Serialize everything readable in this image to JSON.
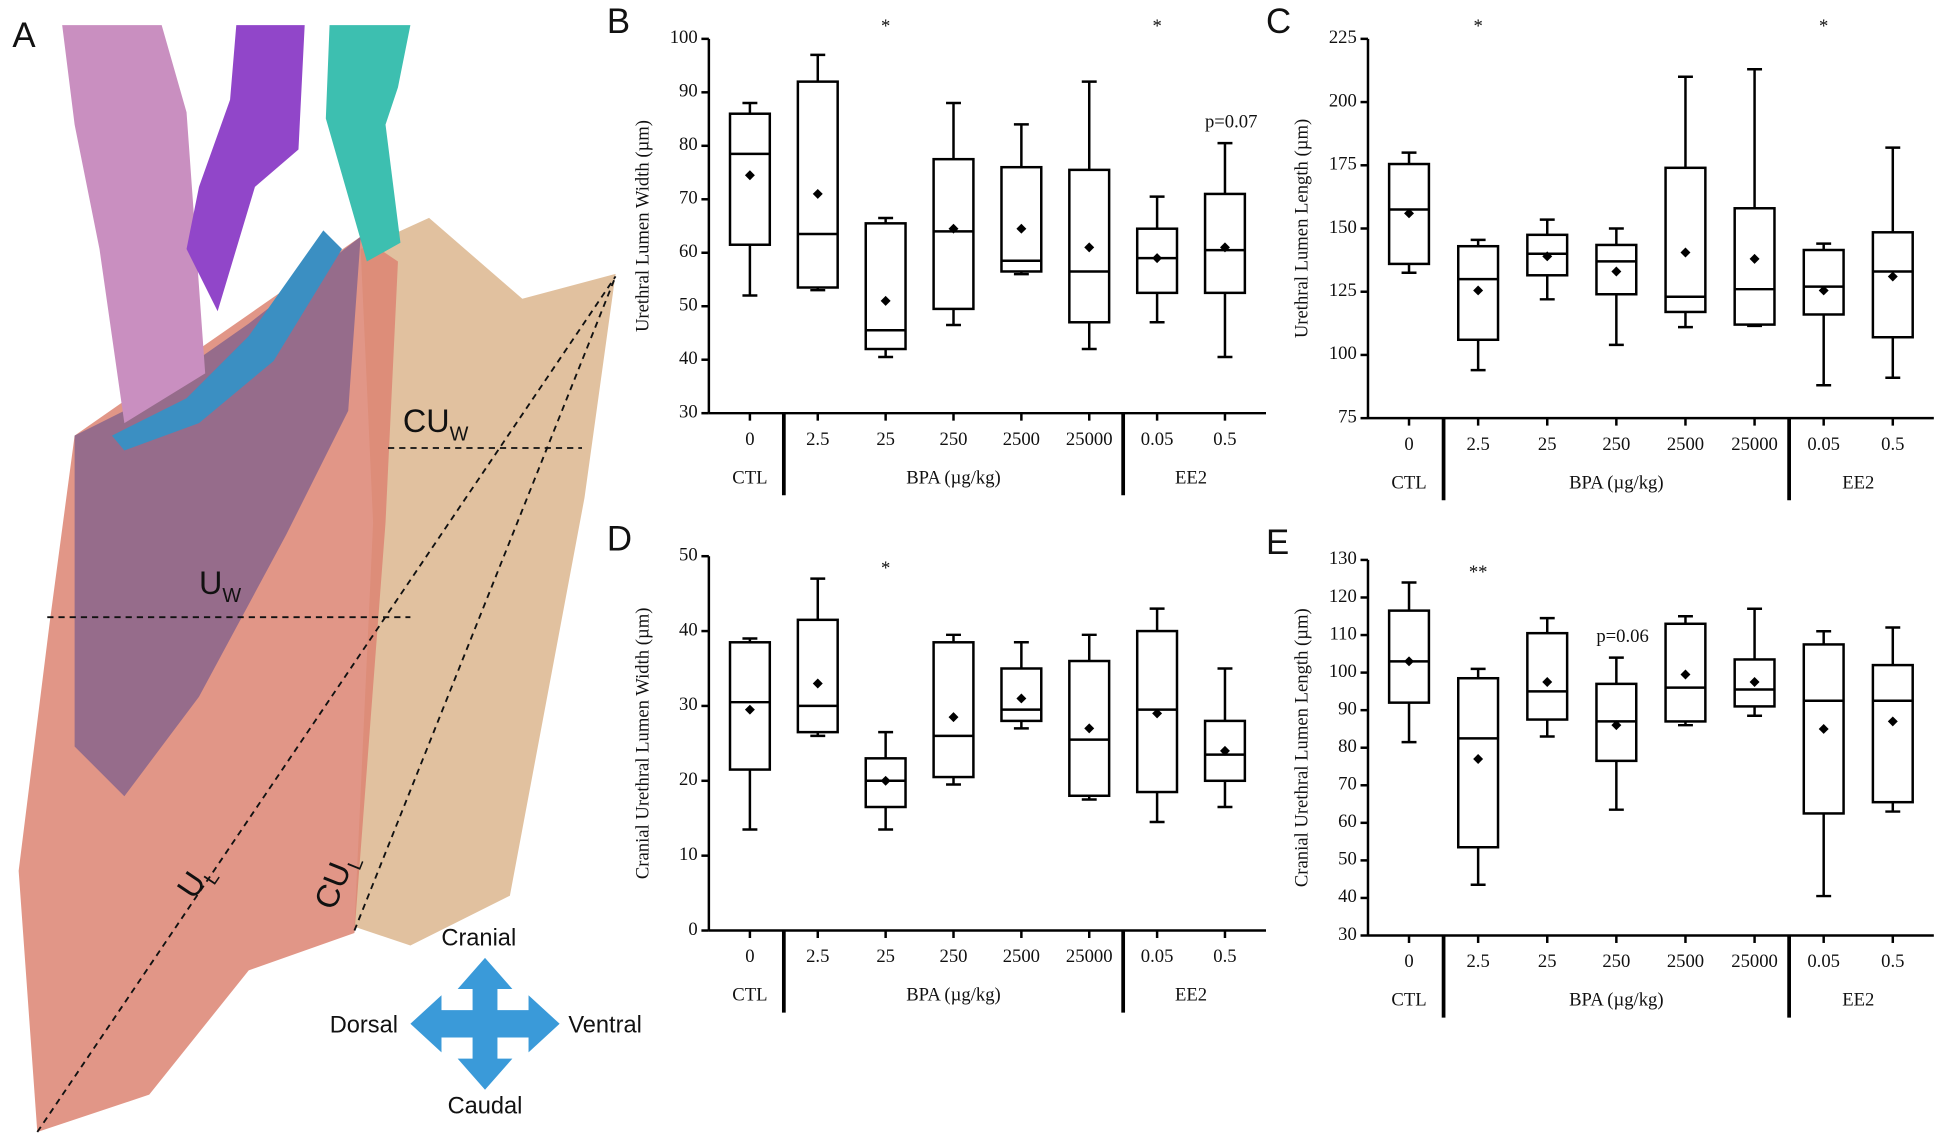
{
  "diagram": {
    "panel_label": "A",
    "labels": [
      {
        "main": "CU",
        "sub": "W"
      },
      {
        "main": "U",
        "sub": "W"
      },
      {
        "main": "U",
        "sub": "L"
      },
      {
        "main": "CU",
        "sub": "L"
      }
    ],
    "directions": {
      "up": "Cranial",
      "left": "Dorsal",
      "right": "Ventral",
      "down": "Caudal"
    }
  },
  "chart_data": [
    {
      "type": "box",
      "panel_label": "B",
      "y_label": "Urethral Lumen Width (µm)",
      "ylim": [
        30,
        100
      ],
      "yticks": [
        30,
        40,
        50,
        60,
        70,
        80,
        90,
        100
      ],
      "color": "#000000",
      "groups": [
        {
          "label": "CTL",
          "categories": [
            "0"
          ],
          "min": [
            52
          ],
          "q1": [
            61.5
          ],
          "median": [
            78.5
          ],
          "q3": [
            86
          ],
          "max": [
            88
          ],
          "mean": [
            74.5
          ],
          "annotations": [
            null
          ]
        },
        {
          "label": "BPA (µg/kg)",
          "categories": [
            "2.5",
            "25",
            "250",
            "2500",
            "25000"
          ],
          "min": [
            53,
            40.5,
            46.5,
            56,
            42
          ],
          "q1": [
            53.5,
            42,
            49.5,
            56.5,
            47
          ],
          "median": [
            63.5,
            45.5,
            64,
            58.5,
            56.5
          ],
          "q3": [
            92,
            65.5,
            77.5,
            76,
            75.5
          ],
          "max": [
            97,
            66.5,
            88,
            84,
            92
          ],
          "mean": [
            71,
            51,
            64.5,
            64.5,
            61
          ],
          "annotations": [
            null,
            "*",
            null,
            null,
            null
          ]
        },
        {
          "label": "EE2",
          "categories": [
            "0.05",
            "0.5"
          ],
          "min": [
            47,
            40.5
          ],
          "q1": [
            52.5,
            52.5
          ],
          "median": [
            59,
            60.5
          ],
          "q3": [
            64.5,
            71
          ],
          "max": [
            70.5,
            80.5
          ],
          "mean": [
            59,
            61
          ],
          "annotations": [
            "*",
            "p=0.07"
          ]
        }
      ]
    },
    {
      "type": "box",
      "panel_label": "C",
      "y_label": "Urethral Lumen Length (µm)",
      "ylim": [
        75,
        225
      ],
      "yticks": [
        75,
        100,
        125,
        150,
        175,
        200,
        225
      ],
      "color": "#000000",
      "groups": [
        {
          "label": "CTL",
          "categories": [
            "0"
          ],
          "min": [
            132.5
          ],
          "q1": [
            136
          ],
          "median": [
            157.5
          ],
          "q3": [
            175.5
          ],
          "max": [
            180
          ],
          "mean": [
            156
          ],
          "annotations": [
            null
          ]
        },
        {
          "label": "BPA (µg/kg)",
          "categories": [
            "2.5",
            "25",
            "250",
            "2500",
            "25000"
          ],
          "min": [
            94,
            122,
            104,
            111,
            111.5
          ],
          "q1": [
            106,
            131.5,
            124,
            117,
            112
          ],
          "median": [
            130,
            140,
            137,
            123,
            126
          ],
          "q3": [
            143,
            147.5,
            143.5,
            174,
            158
          ],
          "max": [
            145.5,
            153.5,
            150,
            210,
            213
          ],
          "mean": [
            125.5,
            139,
            133,
            140.5,
            138
          ],
          "annotations": [
            "*",
            null,
            null,
            null,
            null
          ]
        },
        {
          "label": "EE2",
          "categories": [
            "0.05",
            "0.5"
          ],
          "min": [
            88,
            91
          ],
          "q1": [
            116,
            107
          ],
          "median": [
            127,
            133
          ],
          "q3": [
            141.5,
            148.5
          ],
          "max": [
            144,
            182
          ],
          "mean": [
            125.5,
            131
          ],
          "annotations": [
            "*",
            null
          ]
        }
      ]
    },
    {
      "type": "box",
      "panel_label": "D",
      "y_label": "Cranial Urethral Lumen Width (µm)",
      "ylim": [
        0,
        50
      ],
      "yticks": [
        0,
        10,
        20,
        30,
        40,
        50
      ],
      "color": "#000000",
      "groups": [
        {
          "label": "CTL",
          "categories": [
            "0"
          ],
          "min": [
            13.5
          ],
          "q1": [
            21.5
          ],
          "median": [
            30.5
          ],
          "q3": [
            38.5
          ],
          "max": [
            39
          ],
          "mean": [
            29.5
          ],
          "annotations": [
            null
          ]
        },
        {
          "label": "BPA (µg/kg)",
          "categories": [
            "2.5",
            "25",
            "250",
            "2500",
            "25000"
          ],
          "min": [
            26,
            13.5,
            19.5,
            27,
            17.5
          ],
          "q1": [
            26.5,
            16.5,
            20.5,
            28,
            18
          ],
          "median": [
            30,
            20,
            26,
            29.5,
            25.5
          ],
          "q3": [
            41.5,
            23,
            38.5,
            35,
            36
          ],
          "max": [
            47,
            26.5,
            39.5,
            38.5,
            39.5
          ],
          "mean": [
            33,
            20,
            28.5,
            31,
            27
          ],
          "annotations": [
            null,
            "*",
            null,
            null,
            null
          ]
        },
        {
          "label": "EE2",
          "categories": [
            "0.05",
            "0.5"
          ],
          "min": [
            14.5,
            16.5
          ],
          "q1": [
            18.5,
            20
          ],
          "median": [
            29.5,
            23.5
          ],
          "q3": [
            40,
            28
          ],
          "max": [
            43,
            35
          ],
          "mean": [
            29,
            24
          ],
          "annotations": [
            null,
            null
          ]
        }
      ]
    },
    {
      "type": "box",
      "panel_label": "E",
      "y_label": "Cranial Urethral Lumen Length (µm)",
      "ylim": [
        30,
        130
      ],
      "yticks": [
        30,
        40,
        50,
        60,
        70,
        80,
        90,
        100,
        110,
        120,
        130
      ],
      "color": "#000000",
      "groups": [
        {
          "label": "CTL",
          "categories": [
            "0"
          ],
          "min": [
            81.5
          ],
          "q1": [
            92
          ],
          "median": [
            103
          ],
          "q3": [
            116.5
          ],
          "max": [
            124
          ],
          "mean": [
            103
          ],
          "annotations": [
            null
          ]
        },
        {
          "label": "BPA (µg/kg)",
          "categories": [
            "2.5",
            "25",
            "250",
            "2500",
            "25000"
          ],
          "min": [
            43.5,
            83,
            63.5,
            86,
            88.5
          ],
          "q1": [
            53.5,
            87.5,
            76.5,
            87,
            91
          ],
          "median": [
            82.5,
            95,
            87,
            96,
            95.5
          ],
          "q3": [
            98.5,
            110.5,
            97,
            113,
            103.5
          ],
          "max": [
            101,
            114.5,
            104,
            115,
            117
          ],
          "mean": [
            77,
            97.5,
            86,
            99.5,
            97.5
          ],
          "annotations": [
            "**",
            null,
            "p=0.06",
            null,
            null
          ]
        },
        {
          "label": "EE2",
          "categories": [
            "0.05",
            "0.5"
          ],
          "min": [
            40.5,
            63
          ],
          "q1": [
            62.5,
            65.5
          ],
          "median": [
            92.5,
            92.5
          ],
          "q3": [
            107.5,
            102
          ],
          "max": [
            111,
            112
          ],
          "mean": [
            85,
            87
          ],
          "annotations": [
            null,
            null
          ]
        }
      ]
    }
  ]
}
